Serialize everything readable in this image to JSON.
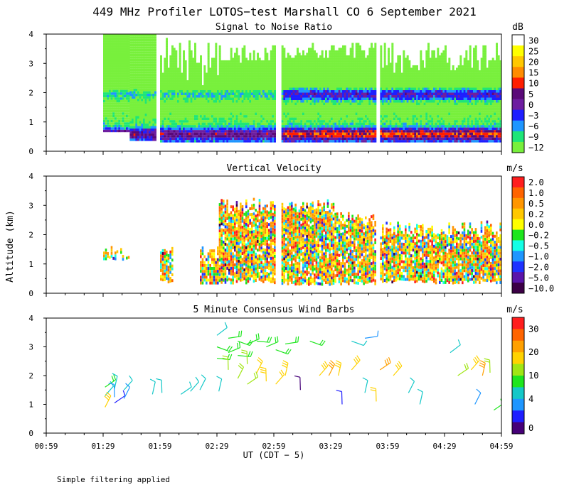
{
  "title": "449 MHz Profiler LOTOS−test Marshall CO  6 September 2021",
  "ylabel": "Altitude (km)",
  "xlabel": "UT  (CDT − 5)",
  "footnote": "Simple filtering applied",
  "x_ticks": [
    "00:59",
    "01:29",
    "01:59",
    "02:29",
    "02:59",
    "03:29",
    "03:59",
    "04:29",
    "04:59"
  ],
  "chart_data": [
    {
      "type": "heatmap",
      "title": "Signal to Noise Ratio",
      "unit": "dB",
      "x_range_minutes_UT": [
        59,
        299
      ],
      "ylim": [
        0,
        4
      ],
      "y_ticks": [
        "0",
        "1",
        "2",
        "3",
        "4"
      ],
      "colorbar": {
        "labels": [
          "30",
          "25",
          "20",
          "15",
          "10",
          "5",
          "0",
          "−3",
          "−6",
          "−9",
          "−12"
        ],
        "colors": [
          "#ffffff",
          "#ffff00",
          "#ffc800",
          "#ff8c00",
          "#ff1e00",
          "#5a0a78",
          "#6e1ea0",
          "#1e1eff",
          "#1e96ff",
          "#1ee678",
          "#78f03c"
        ]
      },
      "data_segments_UT": [
        "01:29–01:43",
        "01:43–01:57",
        "01:59–03:00",
        "03:03–03:53",
        "03:55–04:59"
      ],
      "max_height_km": 4.0,
      "note": "High SNR (>10 dB) layer near 2 km and below 1 km after 03:00"
    },
    {
      "type": "heatmap",
      "title": "Vertical Velocity",
      "unit": "m/s",
      "x_range_minutes_UT": [
        59,
        299
      ],
      "ylim": [
        0,
        4
      ],
      "y_ticks": [
        "0",
        "1",
        "2",
        "3",
        "4"
      ],
      "colorbar": {
        "labels": [
          "2.0",
          "1.0",
          "0.5",
          "0.2",
          "0.0",
          "−0.2",
          "−0.5",
          "−1.0",
          "−2.0",
          "−5.0",
          "−10.0"
        ],
        "colors": [
          "#ff1e1e",
          "#ff6400",
          "#ff9600",
          "#ffc800",
          "#ffff00",
          "#1ee61e",
          "#14ffe6",
          "#1e96ff",
          "#1e32ff",
          "#5a14aa",
          "#3c0046"
        ]
      },
      "data_segments_UT": [
        "01:29–01:44",
        "01:59–02:08",
        "02:23–03:00",
        "03:03–03:53",
        "03:55–04:59"
      ],
      "max_height_km": 3.3
    },
    {
      "type": "scatter",
      "title": "5 Minute Consensus Wind Barbs",
      "unit": "m/s",
      "x_range_minutes_UT": [
        59,
        299
      ],
      "ylim": [
        0,
        4
      ],
      "y_ticks": [
        "0",
        "1",
        "2",
        "3",
        "4"
      ],
      "colorbar": {
        "labels": [
          "30",
          "20",
          "10",
          "4",
          "0"
        ],
        "colors": [
          "#ff1e1e",
          "#ff6400",
          "#ffa000",
          "#ffd200",
          "#a0e614",
          "#1ee61e",
          "#14c8c8",
          "#1e96ff",
          "#1e1eff",
          "#460078"
        ]
      },
      "barbs": [
        {
          "t_min": 90,
          "alt_km": 1.6,
          "speed": 8
        },
        {
          "t_min": 90,
          "alt_km": 1.3,
          "speed": 6
        },
        {
          "t_min": 90,
          "alt_km": 0.9,
          "speed": 14
        },
        {
          "t_min": 95,
          "alt_km": 1.55,
          "speed": 7
        },
        {
          "t_min": 95,
          "alt_km": 1.25,
          "speed": 4
        },
        {
          "t_min": 95,
          "alt_km": 1.05,
          "speed": 2
        },
        {
          "t_min": 100,
          "alt_km": 1.5,
          "speed": 6
        },
        {
          "t_min": 100,
          "alt_km": 1.2,
          "speed": 5
        },
        {
          "t_min": 115,
          "alt_km": 1.35,
          "speed": 7
        },
        {
          "t_min": 120,
          "alt_km": 1.4,
          "speed": 7
        },
        {
          "t_min": 130,
          "alt_km": 1.35,
          "speed": 6
        },
        {
          "t_min": 135,
          "alt_km": 1.45,
          "speed": 7
        },
        {
          "t_min": 140,
          "alt_km": 1.5,
          "speed": 7
        },
        {
          "t_min": 150,
          "alt_km": 1.45,
          "speed": 6
        },
        {
          "t_min": 149,
          "alt_km": 3.4,
          "speed": 7
        },
        {
          "t_min": 149,
          "alt_km": 3.0,
          "speed": 8
        },
        {
          "t_min": 149,
          "alt_km": 2.6,
          "speed": 9
        },
        {
          "t_min": 155,
          "alt_km": 3.3,
          "speed": 8
        },
        {
          "t_min": 155,
          "alt_km": 2.8,
          "speed": 9
        },
        {
          "t_min": 155,
          "alt_km": 2.2,
          "speed": 10
        },
        {
          "t_min": 160,
          "alt_km": 3.2,
          "speed": 9
        },
        {
          "t_min": 160,
          "alt_km": 2.7,
          "speed": 9
        },
        {
          "t_min": 160,
          "alt_km": 1.9,
          "speed": 11
        },
        {
          "t_min": 165,
          "alt_km": 3.1,
          "speed": 9
        },
        {
          "t_min": 165,
          "alt_km": 2.4,
          "speed": 10
        },
        {
          "t_min": 165,
          "alt_km": 1.7,
          "speed": 11
        },
        {
          "t_min": 170,
          "alt_km": 3.2,
          "speed": 9
        },
        {
          "t_min": 170,
          "alt_km": 2.1,
          "speed": 12
        },
        {
          "t_min": 175,
          "alt_km": 3.0,
          "speed": 9
        },
        {
          "t_min": 175,
          "alt_km": 1.8,
          "speed": 13
        },
        {
          "t_min": 180,
          "alt_km": 2.9,
          "speed": 8
        },
        {
          "t_min": 180,
          "alt_km": 1.7,
          "speed": 12
        },
        {
          "t_min": 185,
          "alt_km": 3.1,
          "speed": 9
        },
        {
          "t_min": 185,
          "alt_km": 2.0,
          "speed": 13
        },
        {
          "t_min": 193,
          "alt_km": 1.5,
          "speed": 1
        },
        {
          "t_min": 198,
          "alt_km": 3.2,
          "speed": 8
        },
        {
          "t_min": 203,
          "alt_km": 2.0,
          "speed": 14
        },
        {
          "t_min": 208,
          "alt_km": 2.0,
          "speed": 16
        },
        {
          "t_min": 213,
          "alt_km": 2.0,
          "speed": 14
        },
        {
          "t_min": 215,
          "alt_km": 1.0,
          "speed": 2
        },
        {
          "t_min": 220,
          "alt_km": 3.2,
          "speed": 7
        },
        {
          "t_min": 220,
          "alt_km": 2.2,
          "speed": 14
        },
        {
          "t_min": 227,
          "alt_km": 3.3,
          "speed": 5
        },
        {
          "t_min": 227,
          "alt_km": 1.4,
          "speed": 6
        },
        {
          "t_min": 233,
          "alt_km": 1.1,
          "speed": 12
        },
        {
          "t_min": 235,
          "alt_km": 2.2,
          "speed": 16
        },
        {
          "t_min": 242,
          "alt_km": 2.0,
          "speed": 13
        },
        {
          "t_min": 250,
          "alt_km": 1.4,
          "speed": 6
        },
        {
          "t_min": 256,
          "alt_km": 1.0,
          "speed": 6
        },
        {
          "t_min": 272,
          "alt_km": 2.8,
          "speed": 7
        },
        {
          "t_min": 276,
          "alt_km": 2.0,
          "speed": 10
        },
        {
          "t_min": 283,
          "alt_km": 2.2,
          "speed": 14
        },
        {
          "t_min": 285,
          "alt_km": 1.0,
          "speed": 4
        },
        {
          "t_min": 289,
          "alt_km": 2.0,
          "speed": 15
        },
        {
          "t_min": 293,
          "alt_km": 2.1,
          "speed": 11
        },
        {
          "t_min": 295,
          "alt_km": 0.8,
          "speed": 9
        }
      ]
    }
  ]
}
